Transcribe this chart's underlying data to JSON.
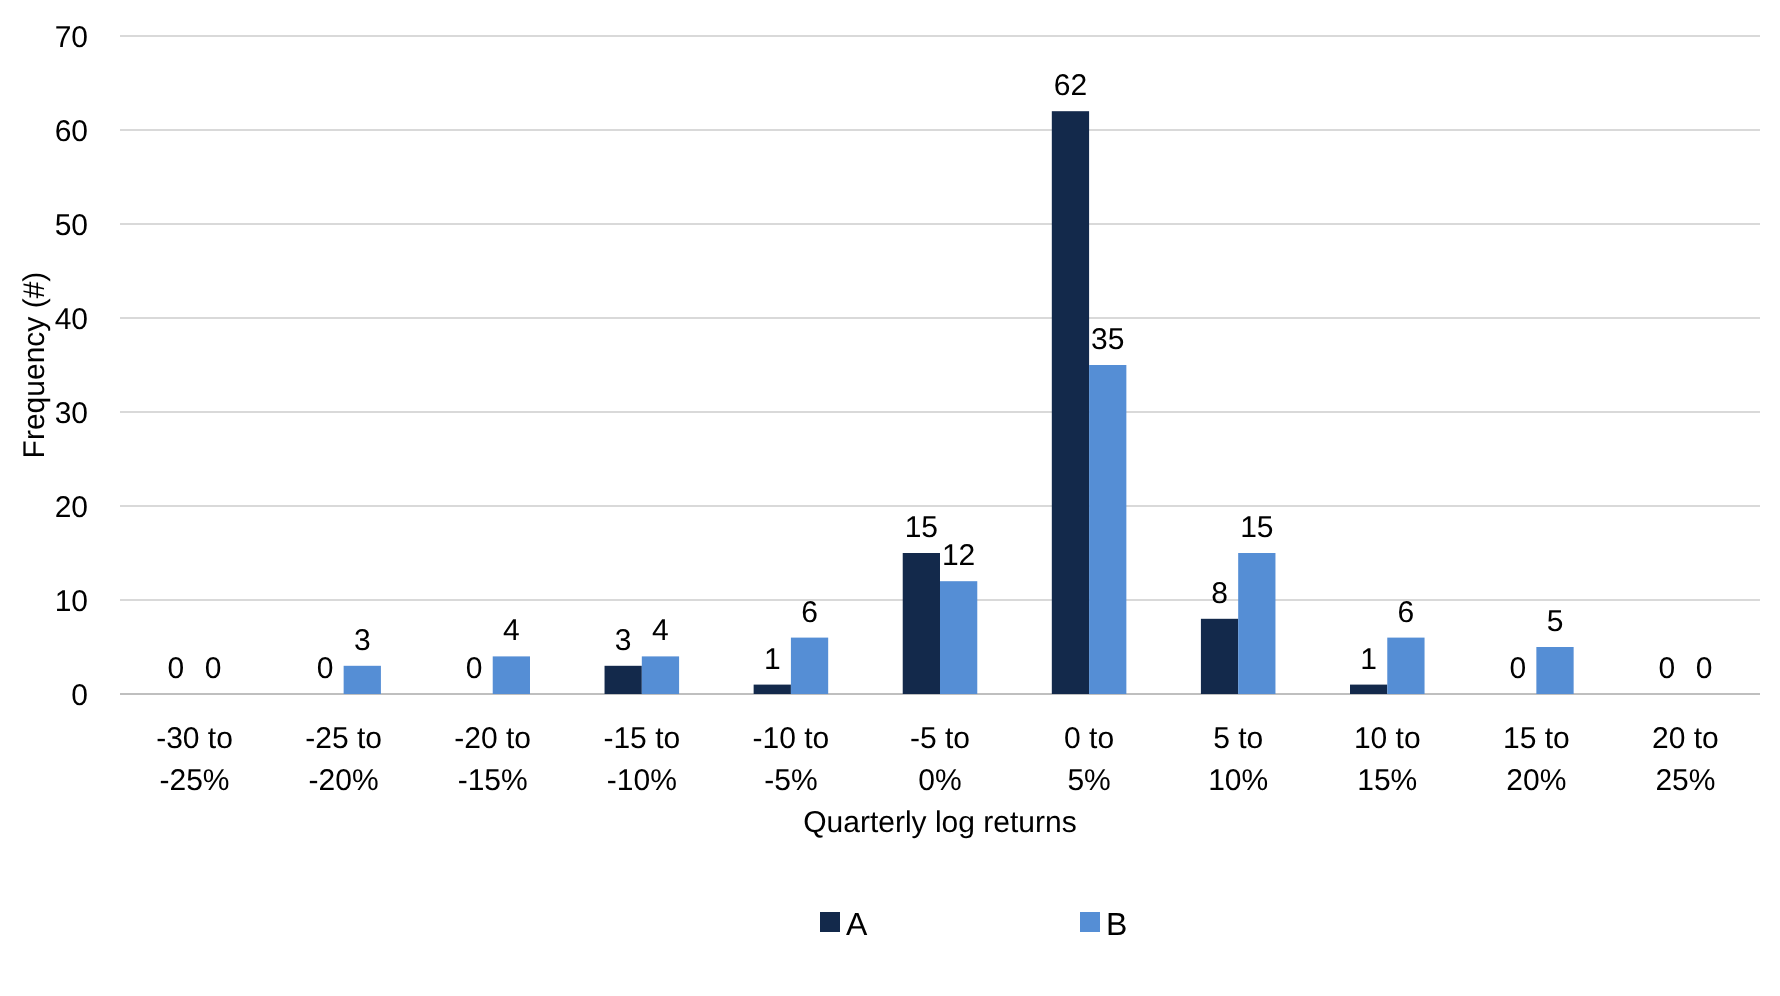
{
  "chart_data": {
    "type": "bar",
    "xlabel": "Quarterly log returns",
    "ylabel": "Frequency (#)",
    "categories": [
      "-30 to -25%",
      "-25 to -20%",
      "-20 to -15%",
      "-15 to -10%",
      "-10 to -5%",
      "-5 to 0%",
      "0 to 5%",
      "5 to 10%",
      "10 to 15%",
      "15 to 20%",
      "20 to 25%"
    ],
    "series": [
      {
        "name": "A",
        "color": "#13294b",
        "values": [
          0,
          0,
          0,
          3,
          1,
          15,
          62,
          8,
          1,
          0,
          0
        ]
      },
      {
        "name": "B",
        "color": "#558ed5",
        "values": [
          0,
          3,
          4,
          4,
          6,
          12,
          35,
          15,
          6,
          5,
          0
        ]
      }
    ],
    "ylim": [
      0,
      70
    ],
    "yticks": [
      0,
      10,
      20,
      30,
      40,
      50,
      60,
      70
    ],
    "grid": "y",
    "legend": "bottom",
    "data_labels": true
  }
}
